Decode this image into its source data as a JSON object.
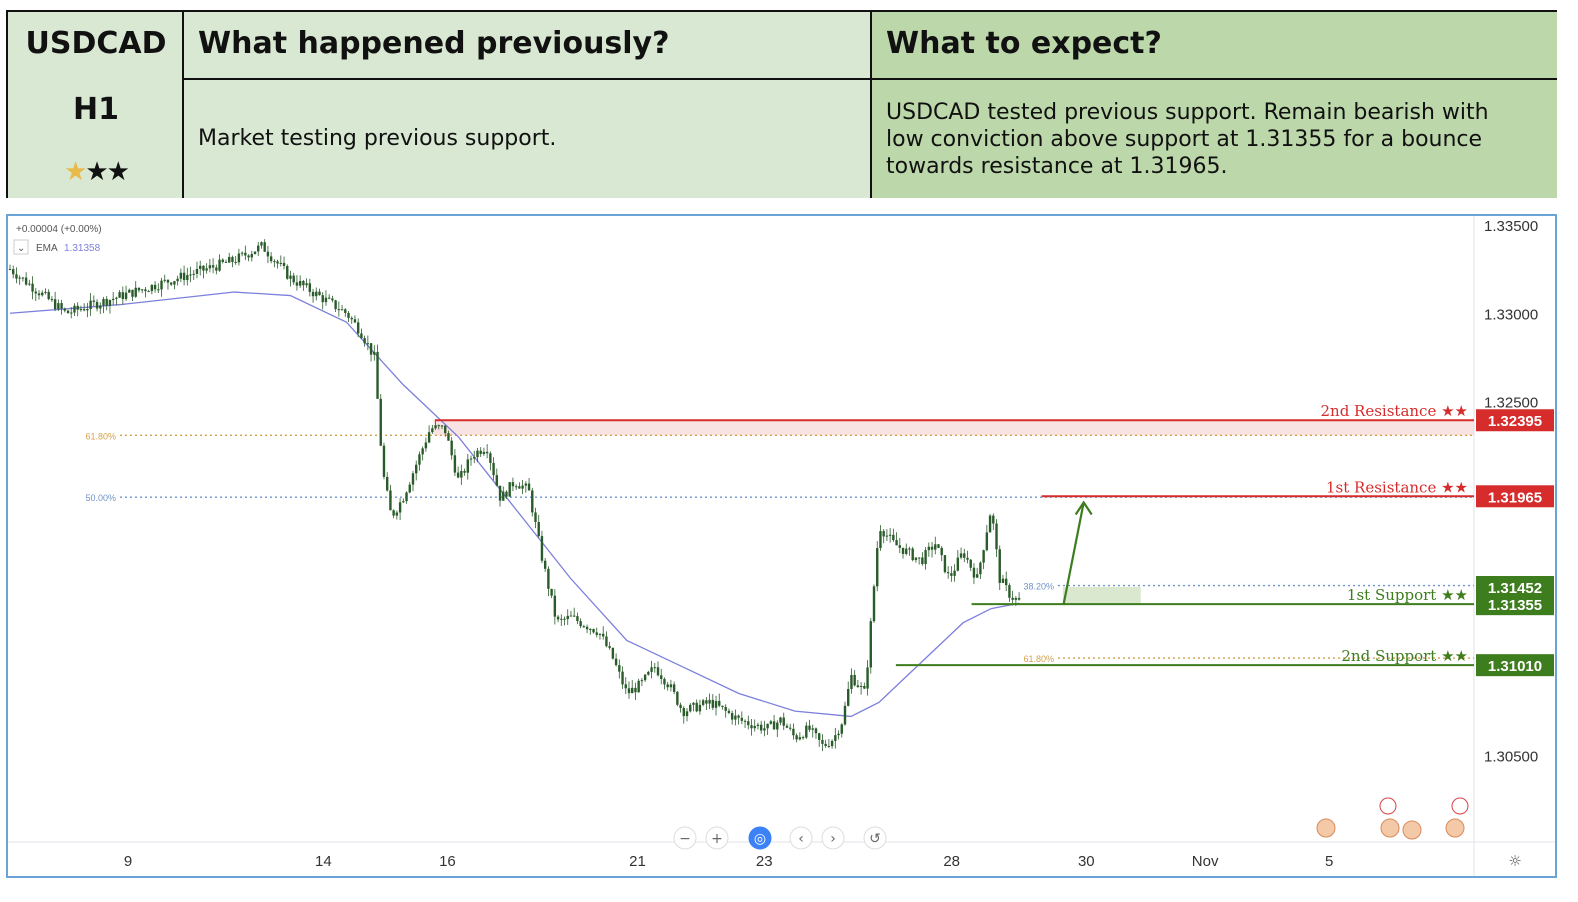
{
  "header": {
    "symbol": "USDCAD",
    "timeframe": "H1",
    "rating_stars": 3,
    "rating_gold": 1,
    "prev_title": "What happened previously?",
    "exp_title": "What to expect?",
    "prev_text": "Market testing previous support.",
    "exp_text_lines": [
      "USDCAD tested previous support. Remain bearish with",
      "low conviction above support at 1.31355 for a bounce",
      "towards resistance at 1.31965."
    ]
  },
  "colors": {
    "resistance": "#d62c2c",
    "support": "#3d7d1e",
    "ema": "#7c7fdc",
    "candle": "#2a5b2a",
    "fib_gold": "#d3a14a",
    "fib_blue": "#6f93c8",
    "frame": "#6aa3d6"
  },
  "chart_data": {
    "type": "candlestick",
    "symbol": "USDCAD",
    "interval": "H1",
    "legend": {
      "change": "+0.00004 (+0.00%)",
      "ema_label": "EMA",
      "ema_value": "1.31358"
    },
    "ylim": [
      1.3001,
      1.3355
    ],
    "y_ticks": [
      "1.33500",
      "1.33000",
      "1.32500",
      "1.30500"
    ],
    "x_ticks": [
      "9",
      "14",
      "16",
      "21",
      "23",
      "28",
      "30",
      "Nov",
      "5"
    ],
    "levels": [
      {
        "label": "2nd Resistance ★★",
        "price": "1.32395",
        "value": 1.32395,
        "kind": "resistance"
      },
      {
        "label": "1st Resistance ★★",
        "price": "1.31965",
        "value": 1.31965,
        "kind": "resistance"
      },
      {
        "label": "1st Support ★★",
        "price": "1.31355",
        "value": 1.31355,
        "kind": "support"
      },
      {
        "label": "2nd Support ★★",
        "price": "1.31010",
        "value": 1.3101,
        "kind": "support"
      }
    ],
    "price_tag_extra": {
      "price": "1.31452",
      "value": 1.31452
    },
    "fib_labels": [
      {
        "label": "61.80%",
        "value": 1.3231
      },
      {
        "label": "50.00%",
        "value": 1.3196
      },
      {
        "label": "38.20%",
        "value": 1.3146
      },
      {
        "label": "61.80%",
        "value": 1.3105
      }
    ],
    "close_path": [
      [
        0,
        1.3325
      ],
      [
        2,
        1.33
      ],
      [
        4,
        1.331
      ],
      [
        6,
        1.332
      ],
      [
        8,
        1.333
      ],
      [
        9,
        1.3338
      ],
      [
        10,
        1.332
      ],
      [
        11,
        1.331
      ],
      [
        12,
        1.33
      ],
      [
        12.5,
        1.329
      ],
      [
        13,
        1.3275
      ],
      [
        13.3,
        1.321
      ],
      [
        13.6,
        1.3185
      ],
      [
        14,
        1.3195
      ],
      [
        14.5,
        1.3215
      ],
      [
        15,
        1.3235
      ],
      [
        15.5,
        1.3235
      ],
      [
        16,
        1.3205
      ],
      [
        16.5,
        1.322
      ],
      [
        17,
        1.3225
      ],
      [
        17.5,
        1.3195
      ],
      [
        18,
        1.3205
      ],
      [
        18.5,
        1.32
      ],
      [
        19,
        1.316
      ],
      [
        19.5,
        1.3125
      ],
      [
        20,
        1.3128
      ],
      [
        21,
        1.312
      ],
      [
        21.5,
        1.3105
      ],
      [
        22,
        1.3085
      ],
      [
        22.5,
        1.309
      ],
      [
        23,
        1.31
      ],
      [
        23.5,
        1.309
      ],
      [
        24,
        1.3075
      ],
      [
        25,
        1.308
      ],
      [
        26,
        1.307
      ],
      [
        27,
        1.3065
      ],
      [
        27.5,
        1.307
      ],
      [
        28,
        1.306
      ],
      [
        28.5,
        1.3065
      ],
      [
        29,
        1.3055
      ],
      [
        29.4,
        1.306
      ],
      [
        29.7,
        1.307
      ],
      [
        30,
        1.3095
      ],
      [
        30.5,
        1.3085
      ],
      [
        31,
        1.318
      ],
      [
        31.5,
        1.317
      ],
      [
        32,
        1.3165
      ],
      [
        32.5,
        1.316
      ],
      [
        33,
        1.317
      ],
      [
        33.5,
        1.315
      ],
      [
        34,
        1.3165
      ],
      [
        34.5,
        1.315
      ],
      [
        35,
        1.319
      ],
      [
        35.3,
        1.315
      ],
      [
        35.7,
        1.314
      ],
      [
        36,
        1.3137
      ]
    ],
    "ema_path": [
      [
        0,
        1.33
      ],
      [
        4,
        1.3305
      ],
      [
        8,
        1.3312
      ],
      [
        10,
        1.331
      ],
      [
        12,
        1.3295
      ],
      [
        14,
        1.326
      ],
      [
        16,
        1.323
      ],
      [
        18,
        1.319
      ],
      [
        20,
        1.315
      ],
      [
        22,
        1.3115
      ],
      [
        24,
        1.31
      ],
      [
        26,
        1.3085
      ],
      [
        28,
        1.3075
      ],
      [
        30,
        1.3072
      ],
      [
        31,
        1.308
      ],
      [
        32,
        1.3095
      ],
      [
        33,
        1.311
      ],
      [
        34,
        1.3125
      ],
      [
        35,
        1.3133
      ],
      [
        36,
        1.3136
      ]
    ],
    "x_range": [
      0,
      47
    ],
    "projection": {
      "from": [
        35.8,
        1.3135
      ],
      "to": [
        36.3,
        1.3193
      ]
    }
  }
}
